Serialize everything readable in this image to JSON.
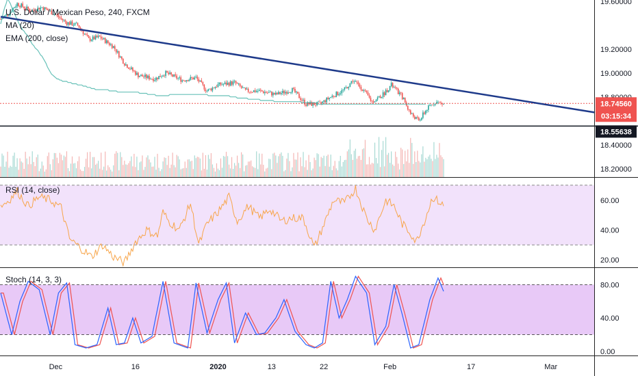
{
  "header": {
    "symbol_title": "U.S. Dollar / Mexican Peso, 240, FXCM",
    "ma_label": "MA (20)",
    "ema_label": "EMA (200, close)",
    "rsi_label": "RSI (14, close)",
    "stoch_label": "Stoch (14, 3, 3)"
  },
  "price_tags": {
    "last_price": "18.74560",
    "countdown": "03:15:34",
    "support_level": "18.55638"
  },
  "colors": {
    "up": "#26a69a",
    "down": "#ef5350",
    "trendline": "#1e3a8a",
    "ema": "#26a69a",
    "rsi_line": "#f7a54a",
    "rsi_band": "#f2e2fb",
    "stoch_k": "#2962ff",
    "stoch_d": "#ef5350",
    "stoch_band": "#e8c9f7",
    "last_price_tag": "#ef5350",
    "dark_tag": "#131722"
  },
  "chart_data": {
    "type": "candlestick",
    "x_axis": {
      "tick_labels": [
        "Dec",
        "16",
        "2020",
        "13",
        "22",
        "Feb",
        "17",
        "Mar"
      ],
      "tick_bars": [
        40,
        98,
        158,
        197,
        235,
        283,
        342,
        400
      ]
    },
    "price": {
      "y_tick_labels": [
        "19.60000",
        "19.20000",
        "19.00000",
        "18.80000",
        "18.40000",
        "18.20000"
      ],
      "y_ticks": [
        19.6,
        19.2,
        19.0,
        18.8,
        18.4,
        18.2
      ],
      "ylim": [
        18.13,
        19.61
      ],
      "last_price": 18.7456,
      "support_level": 18.55638,
      "trendline": {
        "from": [
          0,
          19.47
        ],
        "to": [
          432,
          18.67
        ]
      }
    },
    "rsi": {
      "y_tick_labels": [
        "60.00",
        "40.00",
        "20.00"
      ],
      "y_ticks": [
        60,
        40,
        20
      ],
      "bands": [
        70,
        30
      ],
      "ylim": [
        15,
        75
      ]
    },
    "stoch": {
      "y_tick_labels": [
        "80.00",
        "40.00",
        "0.00"
      ],
      "y_ticks": [
        80,
        40,
        0
      ],
      "bands": [
        80,
        20
      ],
      "ylim": [
        -5,
        100
      ]
    },
    "bars": 310,
    "close": [
      19.41,
      19.46,
      19.51,
      19.55,
      19.58,
      19.62,
      19.6,
      19.58,
      19.55,
      19.52,
      19.5,
      19.47,
      19.45,
      19.42,
      19.4,
      19.38,
      19.36,
      19.35,
      19.33,
      19.32,
      19.3,
      19.28,
      19.26,
      19.24,
      19.23,
      19.21,
      19.2,
      19.19,
      19.17,
      19.15,
      19.14,
      19.12,
      19.1,
      19.08,
      19.05,
      19.03,
      19.01,
      18.99,
      18.98,
      18.97,
      18.96,
      18.95,
      18.95,
      18.94,
      18.94,
      18.93,
      18.93,
      18.93,
      18.93,
      18.92,
      18.92,
      18.92,
      18.91,
      18.91,
      18.91,
      18.91,
      18.9,
      18.9,
      18.9,
      18.9,
      18.89,
      18.89,
      18.89,
      18.88,
      18.88,
      18.88,
      18.87,
      18.87,
      18.87,
      18.86,
      18.86,
      18.86,
      18.86,
      18.86,
      18.86,
      18.86,
      18.86,
      18.86,
      18.86,
      18.85,
      18.85,
      18.85,
      18.85,
      18.85,
      18.85,
      18.84,
      18.84,
      18.84,
      18.84,
      18.84,
      18.84,
      18.84,
      18.84,
      18.84,
      18.84,
      18.84,
      18.84,
      18.84,
      18.84,
      18.84,
      18.84,
      18.83,
      18.83,
      18.83,
      18.83,
      18.83,
      18.83,
      18.82,
      18.82,
      18.82,
      18.82,
      18.82,
      18.82,
      18.81,
      18.81,
      18.81,
      18.81,
      18.81,
      18.81,
      18.81,
      18.81,
      18.81,
      18.81,
      18.82,
      18.82,
      18.82,
      18.82,
      18.82,
      18.82,
      18.82,
      18.82,
      18.82,
      18.82,
      18.82,
      18.82,
      18.82,
      18.82,
      18.82,
      18.82,
      18.82,
      18.82,
      18.82,
      18.82,
      18.82,
      18.82,
      18.82,
      18.82,
      18.82,
      18.82,
      18.82,
      18.82,
      18.81,
      18.81,
      18.81,
      18.81,
      18.81,
      18.81,
      18.81,
      18.81,
      18.81,
      18.81,
      18.81,
      18.81,
      18.81,
      18.81,
      18.81,
      18.81,
      18.8,
      18.8,
      18.8,
      18.8,
      18.8,
      18.79,
      18.79,
      18.79,
      18.79,
      18.79,
      18.79,
      18.79,
      18.79,
      18.78,
      18.78,
      18.78,
      18.78,
      18.78,
      18.78,
      18.78,
      18.78,
      18.78,
      18.77,
      18.77,
      18.77,
      18.77,
      18.77,
      18.77,
      18.77,
      18.77,
      18.77,
      18.77,
      18.76,
      18.76,
      18.76,
      18.76,
      18.76,
      18.76,
      18.76,
      18.76,
      18.76,
      18.76,
      18.76,
      18.76,
      18.76,
      18.76,
      18.76,
      18.76,
      18.76,
      18.76,
      18.76,
      18.76,
      18.75,
      18.75,
      18.75,
      18.75,
      18.75,
      18.75,
      18.75,
      18.75,
      18.75,
      18.75,
      18.75,
      18.74,
      18.74,
      18.74,
      18.74,
      18.74,
      18.74,
      18.74,
      18.74,
      18.74,
      18.74,
      18.74,
      18.74,
      18.74,
      18.74,
      18.74,
      18.74,
      18.74,
      18.74,
      18.74,
      18.74,
      18.74,
      18.74,
      18.74,
      18.74,
      18.74,
      18.74,
      18.74,
      18.74,
      18.74,
      18.74,
      18.74,
      18.74,
      18.74,
      18.74,
      18.74,
      18.74,
      18.74,
      18.74,
      18.74,
      18.74,
      18.74,
      18.74,
      18.74,
      18.74,
      18.74,
      18.74,
      18.74,
      18.74,
      18.74,
      18.74,
      18.74,
      18.74,
      18.74,
      18.74,
      18.74,
      18.74,
      18.74,
      18.74,
      18.74,
      18.74,
      18.74,
      18.74,
      18.74,
      18.74,
      18.74,
      18.74,
      18.74,
      18.74,
      18.74,
      18.74,
      18.74,
      18.74,
      18.74,
      18.74,
      18.74,
      18.74,
      18.74,
      18.74,
      18.74,
      18.74
    ],
    "price_path": [
      [
        0,
        19.45
      ],
      [
        6,
        19.5
      ],
      [
        12,
        19.58
      ],
      [
        22,
        19.52
      ],
      [
        30,
        19.55
      ],
      [
        38,
        19.5
      ],
      [
        48,
        19.42
      ],
      [
        56,
        19.4
      ],
      [
        64,
        19.28
      ],
      [
        72,
        19.3
      ],
      [
        82,
        19.22
      ],
      [
        90,
        19.08
      ],
      [
        100,
        18.98
      ],
      [
        112,
        18.95
      ],
      [
        120,
        19.0
      ],
      [
        132,
        18.94
      ],
      [
        142,
        18.96
      ],
      [
        150,
        18.85
      ],
      [
        158,
        18.9
      ],
      [
        170,
        18.92
      ],
      [
        178,
        18.85
      ],
      [
        188,
        18.85
      ],
      [
        200,
        18.82
      ],
      [
        212,
        18.86
      ],
      [
        222,
        18.74
      ],
      [
        232,
        18.74
      ],
      [
        240,
        18.8
      ],
      [
        250,
        18.86
      ],
      [
        256,
        18.94
      ],
      [
        262,
        18.88
      ],
      [
        270,
        18.76
      ],
      [
        278,
        18.82
      ],
      [
        284,
        18.9
      ],
      [
        292,
        18.8
      ],
      [
        298,
        18.66
      ],
      [
        304,
        18.6
      ],
      [
        310,
        18.7
      ],
      [
        316,
        18.76
      ],
      [
        322,
        18.74
      ]
    ],
    "rsi_path": [
      [
        0,
        56
      ],
      [
        6,
        60
      ],
      [
        12,
        66
      ],
      [
        20,
        56
      ],
      [
        28,
        62
      ],
      [
        36,
        60
      ],
      [
        44,
        55
      ],
      [
        50,
        34
      ],
      [
        58,
        28
      ],
      [
        66,
        22
      ],
      [
        74,
        30
      ],
      [
        82,
        22
      ],
      [
        90,
        18
      ],
      [
        98,
        32
      ],
      [
        106,
        40
      ],
      [
        114,
        36
      ],
      [
        118,
        52
      ],
      [
        122,
        46
      ],
      [
        130,
        40
      ],
      [
        138,
        58
      ],
      [
        144,
        30
      ],
      [
        150,
        44
      ],
      [
        158,
        52
      ],
      [
        166,
        62
      ],
      [
        172,
        46
      ],
      [
        180,
        56
      ],
      [
        188,
        48
      ],
      [
        196,
        54
      ],
      [
        204,
        46
      ],
      [
        212,
        48
      ],
      [
        220,
        48
      ],
      [
        228,
        28
      ],
      [
        236,
        46
      ],
      [
        242,
        60
      ],
      [
        250,
        58
      ],
      [
        258,
        68
      ],
      [
        266,
        48
      ],
      [
        272,
        40
      ],
      [
        280,
        60
      ],
      [
        286,
        56
      ],
      [
        292,
        44
      ],
      [
        298,
        38
      ],
      [
        302,
        32
      ],
      [
        308,
        46
      ],
      [
        314,
        62
      ],
      [
        320,
        58
      ],
      [
        322,
        56
      ]
    ],
    "stoch_k_path": [
      [
        0,
        70
      ],
      [
        8,
        20
      ],
      [
        14,
        60
      ],
      [
        20,
        84
      ],
      [
        28,
        74
      ],
      [
        36,
        20
      ],
      [
        42,
        70
      ],
      [
        48,
        82
      ],
      [
        54,
        8
      ],
      [
        62,
        4
      ],
      [
        70,
        8
      ],
      [
        78,
        52
      ],
      [
        84,
        8
      ],
      [
        90,
        10
      ],
      [
        96,
        40
      ],
      [
        102,
        10
      ],
      [
        110,
        18
      ],
      [
        118,
        84
      ],
      [
        126,
        10
      ],
      [
        136,
        4
      ],
      [
        142,
        82
      ],
      [
        150,
        22
      ],
      [
        158,
        62
      ],
      [
        164,
        82
      ],
      [
        170,
        10
      ],
      [
        178,
        46
      ],
      [
        186,
        20
      ],
      [
        192,
        22
      ],
      [
        200,
        40
      ],
      [
        206,
        62
      ],
      [
        214,
        24
      ],
      [
        222,
        8
      ],
      [
        228,
        4
      ],
      [
        234,
        10
      ],
      [
        240,
        84
      ],
      [
        246,
        40
      ],
      [
        252,
        62
      ],
      [
        258,
        90
      ],
      [
        266,
        70
      ],
      [
        272,
        8
      ],
      [
        280,
        30
      ],
      [
        286,
        80
      ],
      [
        292,
        44
      ],
      [
        298,
        4
      ],
      [
        304,
        8
      ],
      [
        312,
        62
      ],
      [
        318,
        88
      ],
      [
        322,
        72
      ]
    ]
  }
}
